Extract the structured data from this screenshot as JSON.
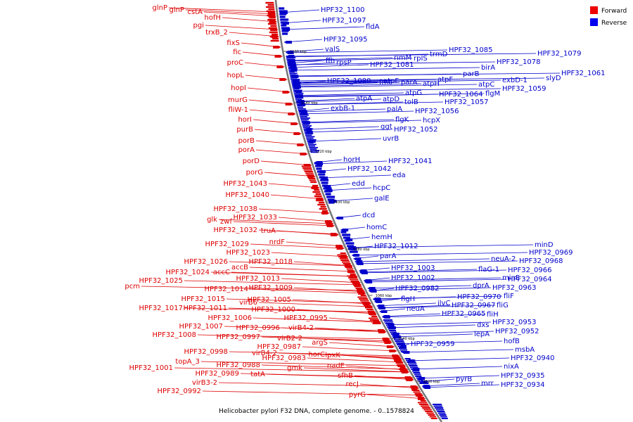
{
  "caption": "Helicobacter pylori F32 DNA, complete genome. - 0..1578824",
  "legend": [
    {
      "label": "Forward",
      "color": "#ee0000"
    },
    {
      "label": "Reverse",
      "color": "#0000ee"
    }
  ],
  "colors": {
    "forward": "#dd0000",
    "reverse": "#0000cc",
    "backbone": "#777777"
  },
  "ticks": [
    "1160 kbp",
    "1140 kbp",
    "1120 kbp",
    "1100 kbp",
    "1080 kbp",
    "1060 kbp",
    "1040 kbp",
    "1020 kbp"
  ],
  "forward_genes": [
    "glnP",
    "glnP",
    "cstA",
    "hofH",
    "pgi",
    "trxB_2",
    "fixS",
    "fic",
    "proC",
    "hopL",
    "hopI",
    "murG",
    "fliW-1",
    "horI",
    "purB",
    "porB",
    "porA",
    "porD",
    "porG",
    "HPF32_1043",
    "HPF32_1040",
    "HPF32_1038",
    "glk",
    "zwf",
    "HPF32_1033",
    "HPF32_1032",
    "truA",
    "nrdF",
    "HPF32_1029",
    "HPF32_1023",
    "HPF32_1026",
    "HPF32_1018",
    "accB",
    "HPF32_1024",
    "accC",
    "HPF32_1025",
    "pcm",
    "HPF32_1013",
    "HPF32_1014",
    "HPF32_1009",
    "HPF32_1015",
    "virB6",
    "HPF32_1005",
    "HPF32_1011",
    "HPF32_1017",
    "HPF32_1000",
    "HPF32_1006",
    "HPF32_0995",
    "HPF32_1007",
    "HPF32_0996",
    "virB4-2",
    "HPF32_1008",
    "HPF32_0997",
    "virB2-2",
    "argS",
    "HPF32_0998",
    "virB4-2",
    "HPF32_0987",
    "horC",
    "lpxK",
    "topA_3",
    "HPF32_0988",
    "HPF32_0983",
    "HPF32_1001",
    "gmk",
    "nadE",
    "HPF32_0989",
    "tatA",
    "sfhB",
    "virB3-2",
    "recJ",
    "HPF32_0992",
    "pyrG"
  ],
  "reverse_genes": [
    "HPF32_1100",
    "HPF32_1097",
    "fldA",
    "HPF32_1095",
    "valS",
    "HPF32_1085",
    "HPF32_1079",
    "rimM",
    "rpIS",
    "trmD",
    "ffh",
    "rpsP",
    "HPF32_1081",
    "HPF32_1078",
    "birA",
    "HPF32_1061",
    "parB",
    "slyD",
    "atpF",
    "exbD-1",
    "HPF32_1080",
    "fmt",
    "parA",
    "atpH",
    "atpC",
    "atpF",
    "HPF32_1059",
    "atpG",
    "HPF32_1064",
    "flgM",
    "atpA",
    "atpD",
    "tolB",
    "HPF32_1057",
    "exbB-1",
    "palA",
    "HPF32_1056",
    "flgK",
    "hcpX",
    "ggt",
    "HPF32_1052",
    "uvrB",
    "horH",
    "HPF32_1041",
    "HPF32_1042",
    "eda",
    "edd",
    "hcpC",
    "galE",
    "dcd",
    "homC",
    "hemH",
    "HPF32_1012",
    "parA",
    "HPF32_1003",
    "HPF32_1002",
    "HPF32_0982",
    "flgH",
    "neuA",
    "minD",
    "HPF32_0969",
    "neuA-2",
    "HPF32_0968",
    "flaG-1",
    "HPF32_0966",
    "minE",
    "HPF32_0964",
    "dprA",
    "HPF32_0963",
    "ilvC",
    "HPF32_0970",
    "fliF",
    "HPF32_0967",
    "fliG",
    "HPF32_0965",
    "fliH",
    "dxs",
    "HPF32_0953",
    "lepA",
    "HPF32_0952",
    "HPF32_0959",
    "hofB",
    "msbA",
    "HPF32_0940",
    "nixA",
    "pyrB",
    "mrr",
    "HPF32_0935",
    "HPF32_0934"
  ]
}
